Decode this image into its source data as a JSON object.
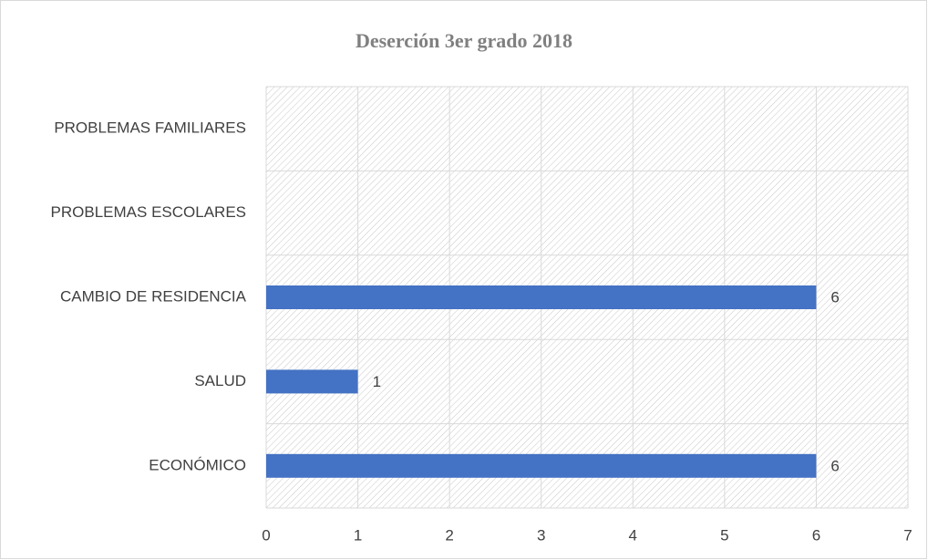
{
  "chart_data": {
    "type": "bar",
    "orientation": "horizontal",
    "title": "Deserción 3er grado 2018",
    "categories": [
      "ECONÓMICO",
      "SALUD",
      "CAMBIO DE RESIDENCIA",
      "PROBLEMAS ESCOLARES",
      "PROBLEMAS FAMILIARES"
    ],
    "values": [
      6,
      1,
      6,
      null,
      null
    ],
    "color": "#4472c4",
    "xlim": [
      0,
      7
    ],
    "xticks": [
      0,
      1,
      2,
      3,
      4,
      5,
      6,
      7
    ],
    "grid": true
  }
}
